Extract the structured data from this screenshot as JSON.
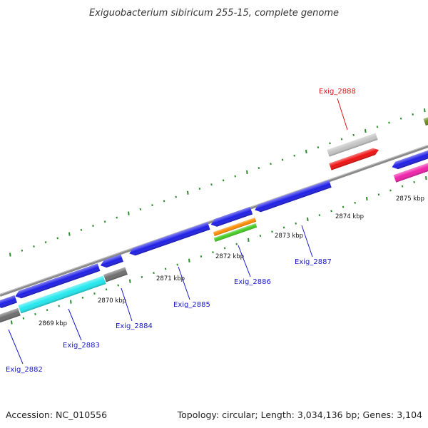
{
  "title": "Exiguobacterium sibiricum 255-15, complete genome",
  "footer": {
    "accession": "Accession: NC_010556",
    "summary": "Topology: circular; Length: 3,034,136 bp; Genes: 3,104"
  },
  "colors": {
    "genome_line": "#8a8a8a",
    "tick": "#2e8b2e",
    "gene_label_default": "#1a1acc",
    "gene_label_highlight": "#dd1111",
    "blue_gene": "#1f1fe6",
    "cyan_gene": "#22e8ee",
    "gray_gene": "#6e6e6e",
    "light_gray_gene": "#c4c4c4",
    "red_gene": "#ee1111",
    "magenta_gene": "#ee22aa",
    "orange_gene": "#ff8c00",
    "green_gene": "#44cc22",
    "olive_gene": "#6b8e23"
  },
  "kbp_labels": [
    {
      "text": "2869 kbp"
    },
    {
      "text": "2870 kbp"
    },
    {
      "text": "2871 kbp"
    },
    {
      "text": "2872 kbp"
    },
    {
      "text": "2873 kbp"
    },
    {
      "text": "2874 kbp"
    },
    {
      "text": "2875 kbp"
    }
  ],
  "gene_labels": [
    {
      "text": "Exig_2882",
      "highlight": false
    },
    {
      "text": "Exig_2883",
      "highlight": false
    },
    {
      "text": "Exig_2884",
      "highlight": false
    },
    {
      "text": "Exig_2885",
      "highlight": false
    },
    {
      "text": "Exig_2886",
      "highlight": false
    },
    {
      "text": "Exig_2887",
      "highlight": false
    },
    {
      "text": "Exig_2888",
      "highlight": true
    }
  ]
}
